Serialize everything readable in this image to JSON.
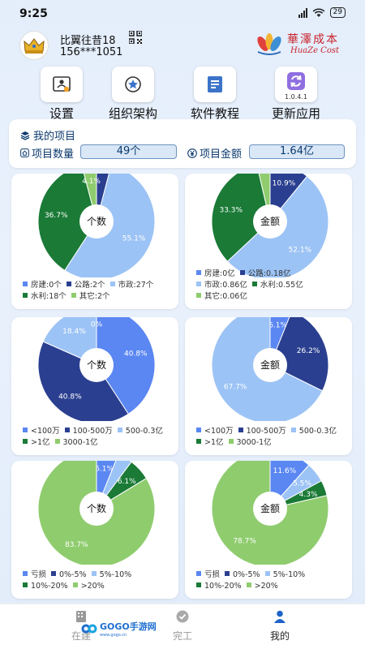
{
  "status_bar": {
    "time": "9:25",
    "network": "5G",
    "battery": "29"
  },
  "profile": {
    "name": "比翼往昔18",
    "phone": "156***1051",
    "avatar_icon": "crown-icon",
    "qr_icon": "qr-code-icon"
  },
  "brand": {
    "name_cn": "華澤成本",
    "name_en": "HuaZe Cost"
  },
  "menu": {
    "items": [
      {
        "label": "设置",
        "icon": "settings-user-icon"
      },
      {
        "label": "组织架构",
        "icon": "org-star-icon"
      },
      {
        "label": "软件教程",
        "icon": "tutorial-icon"
      },
      {
        "label": "更新应用",
        "icon": "refresh-icon",
        "version": "1.0.4.1"
      }
    ]
  },
  "projects": {
    "title": "我的项目",
    "count_label": "项目数量",
    "count_value": "49个",
    "amount_label": "项目金额",
    "amount_value": "1.64亿"
  },
  "charts": [
    {
      "center": "个数",
      "legend": [
        [
          "房建:0个",
          "公路:2个",
          "市政:27个"
        ],
        [
          "水利:18个",
          "其它:2个"
        ]
      ],
      "chart_data": {
        "type": "pie",
        "categories": [
          "房建",
          "公路",
          "市政",
          "水利",
          "其它"
        ],
        "values": [
          0,
          2,
          27,
          18,
          2
        ],
        "labels": [
          "",
          "",
          "55.1%",
          "36.7%",
          "4.1%"
        ]
      }
    },
    {
      "center": "金额",
      "legend": [
        [
          "房建:0亿",
          "公路:0.18亿"
        ],
        [
          "市政:0.86亿",
          "水利:0.55亿"
        ],
        [
          "其它:0.06亿"
        ]
      ],
      "chart_data": {
        "type": "pie",
        "categories": [
          "房建",
          "公路",
          "市政",
          "水利",
          "其它"
        ],
        "values": [
          0,
          0.18,
          0.86,
          0.55,
          0.06
        ],
        "labels": [
          "",
          "10.9%",
          "52.1%",
          "33.3%",
          ""
        ]
      }
    },
    {
      "center": "个数",
      "legend": [
        [
          "<100万",
          "100-500万",
          "500-0.3亿"
        ],
        [
          ">1亿",
          "3000-1亿"
        ]
      ],
      "chart_data": {
        "type": "pie",
        "categories": [
          "<100万",
          "100-500万",
          "500-0.3亿",
          ">1亿",
          "3000-1亿"
        ],
        "values": [
          40.8,
          40.8,
          18.4,
          0,
          0
        ],
        "labels": [
          "40.8%",
          "40.8%",
          "18.4%",
          "0%",
          ""
        ]
      }
    },
    {
      "center": "金额",
      "legend": [
        [
          "<100万",
          "100-500万",
          "500-0.3亿"
        ],
        [
          ">1亿",
          "3000-1亿"
        ]
      ],
      "chart_data": {
        "type": "pie",
        "categories": [
          "<100万",
          "100-500万",
          "500-0.3亿",
          ">1亿",
          "3000-1亿"
        ],
        "values": [
          6.1,
          26.2,
          67.7,
          0,
          0
        ],
        "labels": [
          "6.1%",
          "26.2%",
          "67.7%",
          "",
          ""
        ]
      }
    },
    {
      "center": "个数",
      "legend": [
        [
          "亏损",
          "0%-5%",
          "5%-10%"
        ],
        [
          "10%-20%",
          ">20%"
        ]
      ],
      "chart_data": {
        "type": "pie",
        "categories": [
          "亏损",
          "0%-5%",
          "5%-10%",
          "10%-20%",
          ">20%"
        ],
        "values": [
          6.1,
          0,
          4.1,
          6.1,
          83.7
        ],
        "labels": [
          "6.1%",
          "",
          "",
          "6.1%",
          "83.7%"
        ]
      }
    },
    {
      "center": "金额",
      "legend": [
        [
          "亏损",
          "0%-5%",
          "5%-10%"
        ],
        [
          "10%-20%",
          ">20%"
        ]
      ],
      "chart_data": {
        "type": "pie",
        "categories": [
          "亏损",
          "0%-5%",
          "5%-10%",
          "10%-20%",
          ">20%"
        ],
        "values": [
          11.6,
          0,
          5.5,
          4.3,
          78.7
        ],
        "labels": [
          "11.6%",
          "",
          "5.5%",
          "4.3%",
          "78.7%"
        ]
      }
    }
  ],
  "colors": [
    "#5b87f2",
    "#2a3f8f",
    "#9cc3f5",
    "#1a7a36",
    "#8fcc6e"
  ],
  "bottom_nav": {
    "items": [
      {
        "label": "在建"
      },
      {
        "label": "完工"
      },
      {
        "label": "我的",
        "active": true
      }
    ]
  },
  "watermark": {
    "text": "GOGO手游网",
    "sub": "www.gogo.cn"
  }
}
